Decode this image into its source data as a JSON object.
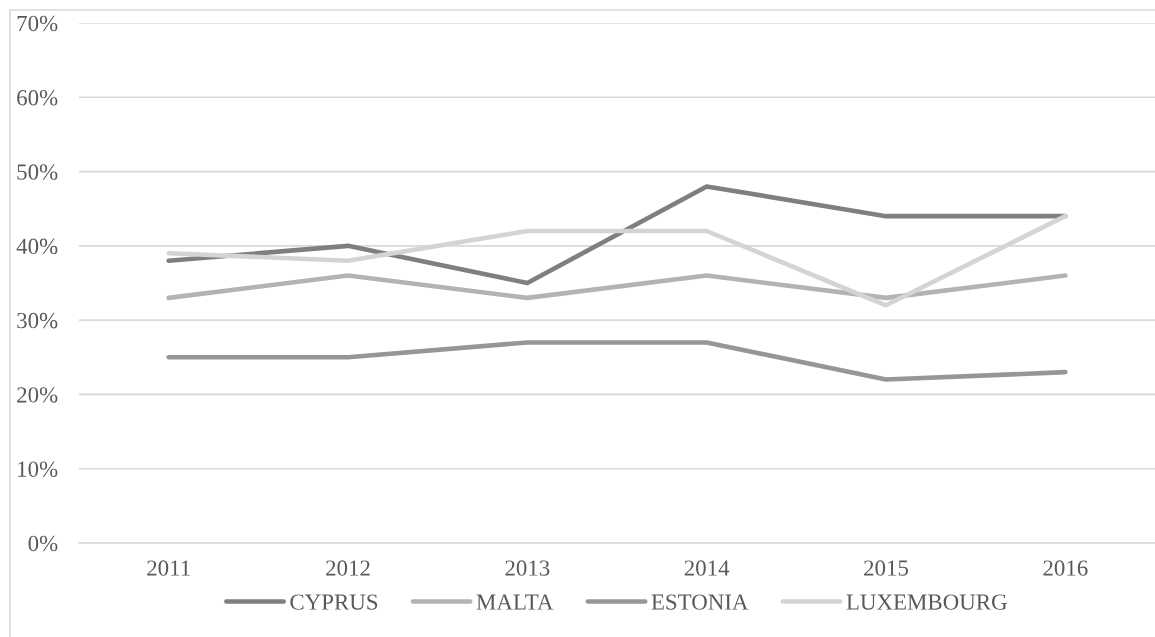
{
  "chart_data": {
    "type": "line",
    "categories": [
      "2011",
      "2012",
      "2013",
      "2014",
      "2015",
      "2016"
    ],
    "series": [
      {
        "name": "CYPRUS",
        "color": "#7f7f7f",
        "values": [
          38,
          40,
          35,
          48,
          44,
          44
        ]
      },
      {
        "name": "MALTA",
        "color": "#b3b3b3",
        "values": [
          33,
          36,
          33,
          36,
          33,
          36
        ]
      },
      {
        "name": "ESTONIA",
        "color": "#969696",
        "values": [
          25,
          25,
          27,
          27,
          22,
          23
        ]
      },
      {
        "name": "LUXEMBOURG",
        "color": "#d4d4d4",
        "values": [
          39,
          38,
          42,
          42,
          32,
          44
        ]
      }
    ],
    "ylim": [
      0,
      70
    ],
    "yticks": [
      {
        "value": 0,
        "label": "0%"
      },
      {
        "value": 10,
        "label": "10%"
      },
      {
        "value": 20,
        "label": "20%"
      },
      {
        "value": 30,
        "label": "30%"
      },
      {
        "value": 40,
        "label": "40%"
      },
      {
        "value": 50,
        "label": "50%"
      },
      {
        "value": 60,
        "label": "60%"
      },
      {
        "value": 70,
        "label": "70%"
      }
    ],
    "grid": "y",
    "legend": "bottom"
  }
}
